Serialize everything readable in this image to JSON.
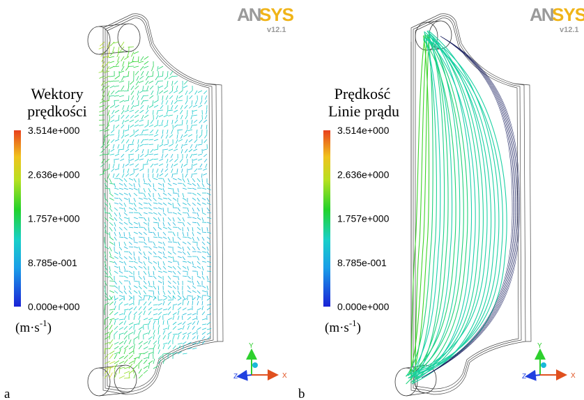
{
  "brand": {
    "name_a": "AN",
    "name_b": "SYS",
    "version": "v12.1"
  },
  "colors": {
    "low": "#1a22d6",
    "mid_low": "#19c8e0",
    "mid": "#22d22a",
    "mid_high": "#e8e01e",
    "high": "#e8501e",
    "axis_x": "#e0501e",
    "axis_y": "#2ed02e",
    "axis_z": "#2040e0",
    "axis_dot": "#19b8d8"
  },
  "panels": [
    {
      "label": "a",
      "title_line1": "Wektory",
      "title_line2": "prędkości",
      "legend_ticks": [
        "3.514e+000",
        "2.636e+000",
        "1.757e+000",
        "8.785e-001",
        "0.000e+000"
      ],
      "unit_main": "(m·s",
      "unit_sup": "-1",
      "unit_close": ")",
      "visualization": "vectors",
      "axes": {
        "x": "X",
        "y": "Y",
        "z": "Z"
      }
    },
    {
      "label": "b",
      "title_line1": "Prędkość",
      "title_line2": "Linie prądu",
      "legend_ticks": [
        "3.514e+000",
        "2.636e+000",
        "1.757e+000",
        "8.785e-001",
        "0.000e+000"
      ],
      "unit_main": "(m·s",
      "unit_sup": "-1",
      "unit_close": ")",
      "visualization": "streamlines",
      "axes": {
        "x": "X",
        "y": "Y",
        "z": "Z"
      }
    }
  ]
}
